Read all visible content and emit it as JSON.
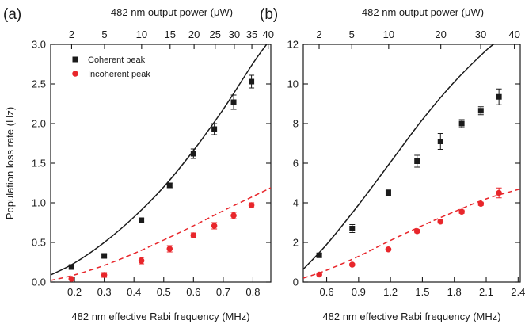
{
  "colors": {
    "coherent": "#1a1a1a",
    "incoherent": "#e8262b",
    "axis": "#1a1a1a"
  },
  "chart_data": [
    {
      "type": "scatter",
      "panel_label": "(a)",
      "xlabel": "482 nm effective Rabi frequency (MHz)",
      "ylabel": "Population loss rate (Hz)",
      "top_xlabel": "482 nm output power (μW)",
      "xlim": [
        0.12,
        0.86
      ],
      "ylim": [
        0,
        3.0
      ],
      "grid": false,
      "legend_position": "top-left",
      "x_ticks": [
        {
          "value": 0.2,
          "label": "0.2"
        },
        {
          "value": 0.3,
          "label": "0.3"
        },
        {
          "value": 0.4,
          "label": "0.4"
        },
        {
          "value": 0.5,
          "label": "0.5"
        },
        {
          "value": 0.6,
          "label": "0.6"
        },
        {
          "value": 0.7,
          "label": "0.7"
        },
        {
          "value": 0.8,
          "label": "0.8"
        }
      ],
      "y_ticks": [
        {
          "value": 0,
          "label": "0.0"
        },
        {
          "value": 0.5,
          "label": "0.5"
        },
        {
          "value": 1.0,
          "label": "1.0"
        },
        {
          "value": 1.5,
          "label": "1.5"
        },
        {
          "value": 2.0,
          "label": "2.0"
        },
        {
          "value": 2.5,
          "label": "2.5"
        },
        {
          "value": 3.0,
          "label": "3.0"
        }
      ],
      "top_ticks": [
        {
          "value": 0.1904,
          "label": "2"
        },
        {
          "value": 0.301,
          "label": "5"
        },
        {
          "value": 0.4257,
          "label": "10"
        },
        {
          "value": 0.5214,
          "label": "15"
        },
        {
          "value": 0.6021,
          "label": "20"
        },
        {
          "value": 0.6731,
          "label": "25"
        },
        {
          "value": 0.7373,
          "label": "30"
        },
        {
          "value": 0.7963,
          "label": "35"
        },
        {
          "value": 0.8513,
          "label": "40"
        }
      ],
      "series": [
        {
          "name": "Coherent peak",
          "marker": "square",
          "color": "#1a1a1a",
          "points": [
            {
              "x": 0.19,
              "y": 0.19,
              "err": 0.02
            },
            {
              "x": 0.3,
              "y": 0.33,
              "err": 0.02
            },
            {
              "x": 0.425,
              "y": 0.78,
              "err": 0.02
            },
            {
              "x": 0.52,
              "y": 1.22,
              "err": 0.03
            },
            {
              "x": 0.6,
              "y": 1.62,
              "err": 0.06
            },
            {
              "x": 0.67,
              "y": 1.93,
              "err": 0.07
            },
            {
              "x": 0.735,
              "y": 2.27,
              "err": 0.09
            },
            {
              "x": 0.795,
              "y": 2.53,
              "err": 0.08
            }
          ]
        },
        {
          "name": "Incoherent peak",
          "marker": "circle",
          "color": "#e8262b",
          "points": [
            {
              "x": 0.19,
              "y": 0.04,
              "err": 0.01
            },
            {
              "x": 0.3,
              "y": 0.09,
              "err": 0.03
            },
            {
              "x": 0.425,
              "y": 0.27,
              "err": 0.04
            },
            {
              "x": 0.52,
              "y": 0.42,
              "err": 0.04
            },
            {
              "x": 0.6,
              "y": 0.59,
              "err": 0.03
            },
            {
              "x": 0.67,
              "y": 0.71,
              "err": 0.04
            },
            {
              "x": 0.735,
              "y": 0.84,
              "err": 0.04
            },
            {
              "x": 0.795,
              "y": 0.97,
              "err": 0.03
            }
          ]
        }
      ],
      "fits": [
        {
          "color": "#1a1a1a",
          "dashed": false,
          "points": [
            [
              0.12,
              0.09
            ],
            [
              0.2,
              0.24
            ],
            [
              0.3,
              0.5
            ],
            [
              0.4,
              0.82
            ],
            [
              0.5,
              1.2
            ],
            [
              0.6,
              1.66
            ],
            [
              0.7,
              2.18
            ],
            [
              0.8,
              2.76
            ],
            [
              0.85,
              3.02
            ]
          ]
        },
        {
          "color": "#e8262b",
          "dashed": true,
          "points": [
            [
              0.12,
              0.02
            ],
            [
              0.2,
              0.09
            ],
            [
              0.3,
              0.21
            ],
            [
              0.4,
              0.36
            ],
            [
              0.5,
              0.53
            ],
            [
              0.6,
              0.71
            ],
            [
              0.7,
              0.9
            ],
            [
              0.8,
              1.08
            ],
            [
              0.86,
              1.19
            ]
          ]
        }
      ]
    },
    {
      "type": "scatter",
      "panel_label": "(b)",
      "xlabel": "482 nm effective Rabi frequency (MHz)",
      "ylabel": "",
      "top_xlabel": "482 nm output power (μW)",
      "xlim": [
        0.38,
        2.42
      ],
      "ylim": [
        0,
        12
      ],
      "grid": false,
      "x_ticks": [
        {
          "value": 0.6,
          "label": "0.6"
        },
        {
          "value": 0.9,
          "label": "0.9"
        },
        {
          "value": 1.2,
          "label": "1.2"
        },
        {
          "value": 1.5,
          "label": "1.5"
        },
        {
          "value": 1.8,
          "label": "1.8"
        },
        {
          "value": 2.1,
          "label": "2.1"
        },
        {
          "value": 2.4,
          "label": "2.4"
        }
      ],
      "y_ticks": [
        {
          "value": 0,
          "label": "0"
        },
        {
          "value": 2,
          "label": "2"
        },
        {
          "value": 4,
          "label": "4"
        },
        {
          "value": 6,
          "label": "6"
        },
        {
          "value": 8,
          "label": "8"
        },
        {
          "value": 10,
          "label": "10"
        },
        {
          "value": 12,
          "label": "12"
        }
      ],
      "top_ticks": [
        {
          "value": 0.529,
          "label": "2"
        },
        {
          "value": 0.836,
          "label": "5"
        },
        {
          "value": 1.183,
          "label": "10"
        },
        {
          "value": 1.673,
          "label": "20"
        },
        {
          "value": 2.048,
          "label": "30"
        },
        {
          "value": 2.365,
          "label": "40"
        }
      ],
      "series": [
        {
          "name": "Coherent peak",
          "marker": "square",
          "color": "#1a1a1a",
          "points": [
            {
              "x": 0.53,
              "y": 1.35,
              "err": 0.1
            },
            {
              "x": 0.84,
              "y": 2.7,
              "err": 0.2
            },
            {
              "x": 1.18,
              "y": 4.5,
              "err": 0.15
            },
            {
              "x": 1.45,
              "y": 6.1,
              "err": 0.3
            },
            {
              "x": 1.67,
              "y": 7.1,
              "err": 0.4
            },
            {
              "x": 1.87,
              "y": 8.0,
              "err": 0.2
            },
            {
              "x": 2.05,
              "y": 8.65,
              "err": 0.2
            },
            {
              "x": 2.22,
              "y": 9.35,
              "err": 0.4
            }
          ]
        },
        {
          "name": "Incoherent peak",
          "marker": "circle",
          "color": "#e8262b",
          "points": [
            {
              "x": 0.53,
              "y": 0.38,
              "err": 0.03
            },
            {
              "x": 0.84,
              "y": 0.88,
              "err": 0.05
            },
            {
              "x": 1.18,
              "y": 1.65,
              "err": 0.05
            },
            {
              "x": 1.45,
              "y": 2.57,
              "err": 0.08
            },
            {
              "x": 1.67,
              "y": 3.05,
              "err": 0.08
            },
            {
              "x": 1.87,
              "y": 3.55,
              "err": 0.08
            },
            {
              "x": 2.05,
              "y": 3.95,
              "err": 0.08
            },
            {
              "x": 2.22,
              "y": 4.5,
              "err": 0.25
            }
          ]
        }
      ],
      "fits": [
        {
          "color": "#1a1a1a",
          "dashed": false,
          "points": [
            [
              0.38,
              0.65
            ],
            [
              0.6,
              1.9
            ],
            [
              0.9,
              3.9
            ],
            [
              1.2,
              6.05
            ],
            [
              1.5,
              8.2
            ],
            [
              1.8,
              10.1
            ],
            [
              2.1,
              11.7
            ],
            [
              2.2,
              12.1
            ]
          ]
        },
        {
          "color": "#e8262b",
          "dashed": true,
          "points": [
            [
              0.38,
              0.2
            ],
            [
              0.6,
              0.6
            ],
            [
              0.9,
              1.3
            ],
            [
              1.2,
              2.1
            ],
            [
              1.5,
              2.85
            ],
            [
              1.8,
              3.55
            ],
            [
              2.1,
              4.2
            ],
            [
              2.42,
              4.7
            ]
          ]
        }
      ]
    }
  ]
}
